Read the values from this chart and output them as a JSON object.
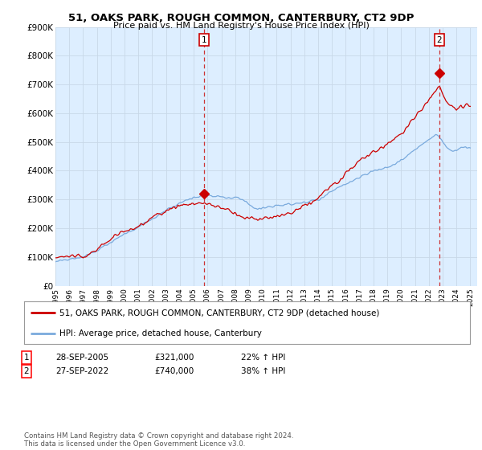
{
  "title": "51, OAKS PARK, ROUGH COMMON, CANTERBURY, CT2 9DP",
  "subtitle": "Price paid vs. HM Land Registry's House Price Index (HPI)",
  "ylim": [
    0,
    900000
  ],
  "yticks": [
    0,
    100000,
    200000,
    300000,
    400000,
    500000,
    600000,
    700000,
    800000,
    900000
  ],
  "ytick_labels": [
    "£0",
    "£100K",
    "£200K",
    "£300K",
    "£400K",
    "£500K",
    "£600K",
    "£700K",
    "£800K",
    "£900K"
  ],
  "xlim_start": 1995.0,
  "xlim_end": 2025.5,
  "transaction1_year": 2005.75,
  "transaction1_price": 321000,
  "transaction1_date": "28-SEP-2005",
  "transaction1_pct": "22% ↑ HPI",
  "transaction2_year": 2022.75,
  "transaction2_price": 740000,
  "transaction2_date": "27-SEP-2022",
  "transaction2_pct": "38% ↑ HPI",
  "red_line_color": "#cc0000",
  "blue_line_color": "#7aaadd",
  "chart_bg_color": "#ddeeff",
  "dashed_line_color": "#cc3333",
  "legend_label_red": "51, OAKS PARK, ROUGH COMMON, CANTERBURY, CT2 9DP (detached house)",
  "legend_label_blue": "HPI: Average price, detached house, Canterbury",
  "footer": "Contains HM Land Registry data © Crown copyright and database right 2024.\nThis data is licensed under the Open Government Licence v3.0.",
  "bg_color": "#ffffff",
  "grid_color": "#c8d8e8"
}
